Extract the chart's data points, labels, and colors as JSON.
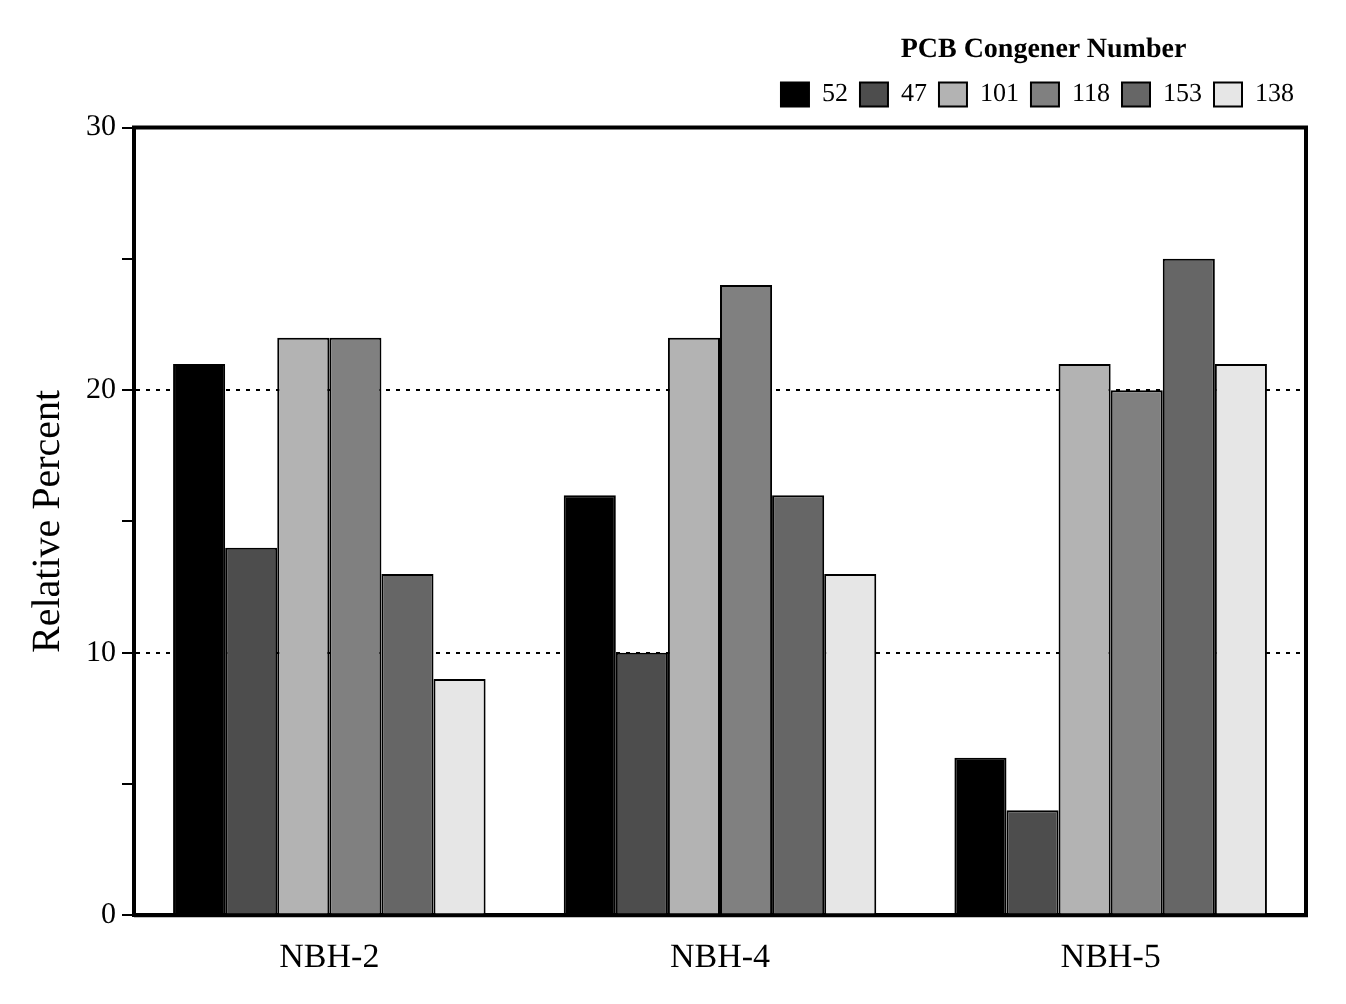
{
  "chart_data": {
    "type": "bar",
    "ylabel": "Relative Percent",
    "legend_title": "PCB Congener Number",
    "categories": [
      "NBH-2",
      "NBH-4",
      "NBH-5"
    ],
    "series": [
      {
        "name": "52",
        "color": "#000000",
        "values": [
          21,
          16,
          6
        ]
      },
      {
        "name": "47",
        "color": "#4d4d4d",
        "values": [
          14,
          10,
          4
        ]
      },
      {
        "name": "101",
        "color": "#b3b3b3",
        "values": [
          22,
          22,
          21
        ]
      },
      {
        "name": "118",
        "color": "#808080",
        "values": [
          22,
          24,
          20
        ]
      },
      {
        "name": "153",
        "color": "#666666",
        "values": [
          13,
          16,
          25
        ]
      },
      {
        "name": "138",
        "color": "#e6e6e6",
        "values": [
          9,
          13,
          21
        ]
      }
    ],
    "ylim": [
      0,
      30
    ],
    "yticks": [
      0,
      {
        "value": 5,
        "label": null
      },
      10,
      {
        "value": 15,
        "label": null
      },
      20,
      {
        "value": 25,
        "label": null
      },
      30
    ],
    "grid": "y",
    "legend": "top right"
  }
}
